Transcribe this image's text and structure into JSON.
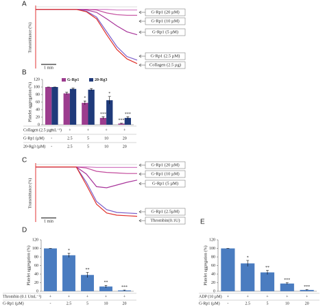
{
  "chart_data": [
    {
      "type": "line",
      "panel": "A",
      "ylabel": "Transmittance (%)",
      "scale_label": "1 min",
      "x": [
        0,
        1,
        2,
        3,
        4,
        5,
        6,
        7,
        8,
        9,
        10
      ],
      "xlim": [
        0,
        10
      ],
      "ylim": [
        0,
        100
      ],
      "series": [
        {
          "name": "G-Rp1 (20 µM)",
          "color": "#d27ac2",
          "values": [
            98,
            98,
            98,
            98,
            98,
            98,
            98,
            98,
            97,
            97,
            97
          ]
        },
        {
          "name": "G-Rp1 (10 µM)",
          "color": "#c24a9c",
          "values": [
            98,
            98,
            98,
            98,
            98,
            98,
            97,
            92,
            89,
            88,
            88
          ]
        },
        {
          "name": "G-Rp1 (5 µM)",
          "color": "#a8349a",
          "values": [
            98,
            98,
            98,
            98,
            98,
            97,
            93,
            82,
            70,
            60,
            55
          ]
        },
        {
          "name": "G-Rp1 (2.5 µM)",
          "color": "#7a5cc8",
          "values": [
            98,
            98,
            98,
            98,
            98,
            95,
            85,
            60,
            35,
            18,
            12
          ]
        },
        {
          "name": "Collagen (2.5 µg)",
          "color": "#e0302a",
          "values": [
            98,
            98,
            98,
            98,
            98,
            94,
            82,
            55,
            30,
            14,
            6
          ]
        }
      ]
    },
    {
      "type": "bar",
      "panel": "B",
      "ylabel": "Platelet aggregation (%)",
      "ylim": [
        0,
        120
      ],
      "yticks": [
        0,
        20,
        40,
        60,
        80,
        100,
        120
      ],
      "series": [
        {
          "name": "G-Rp1",
          "color": "#9c3c8e",
          "values": [
            100,
            83,
            58,
            18,
            3
          ],
          "errors": [
            0,
            3,
            5,
            3,
            1
          ],
          "sig": [
            null,
            null,
            "*",
            "***",
            "***"
          ]
        },
        {
          "name": "20-Rg3",
          "color": "#1f3a7a",
          "values": [
            100,
            95,
            93,
            65,
            18
          ],
          "errors": [
            0,
            2,
            3,
            10,
            3
          ],
          "sig": [
            null,
            null,
            null,
            "*",
            "***"
          ]
        }
      ],
      "table": [
        {
          "label": "Collagen (2.5 µgmL⁻¹)",
          "cells": [
            "+",
            "+",
            "+",
            "+",
            "+"
          ]
        },
        {
          "label": "G-Rp1 (µM)",
          "cells": [
            "-",
            "2.5",
            "5",
            "10",
            "20"
          ]
        },
        {
          "label": "20-Rg3 (µM)",
          "cells": [
            "-",
            "2.5",
            "5",
            "10",
            "20"
          ]
        }
      ]
    },
    {
      "type": "line",
      "panel": "C",
      "ylabel": "Transmittance (%)",
      "scale_label": "1 min",
      "x": [
        0,
        1,
        2,
        3,
        4,
        5,
        6,
        7,
        8,
        9,
        10
      ],
      "xlim": [
        0,
        10
      ],
      "ylim": [
        0,
        100
      ],
      "series": [
        {
          "name": "G-Rp1 (20 µM)",
          "color": "#d27ac2",
          "values": [
            98,
            98,
            98,
            98,
            98,
            98,
            97,
            97,
            97,
            97,
            97
          ]
        },
        {
          "name": "G-Rp1 (10 µM)",
          "color": "#c24a9c",
          "values": [
            98,
            98,
            98,
            98,
            98,
            96,
            90,
            88,
            87,
            86,
            86
          ]
        },
        {
          "name": "G-Rp1 (5 µM)",
          "color": "#a8349a",
          "values": [
            98,
            98,
            98,
            98,
            98,
            85,
            62,
            60,
            65,
            70,
            74
          ]
        },
        {
          "name": "G-Rp1 (2.5µM)",
          "color": "#7a5cc8",
          "values": [
            98,
            98,
            98,
            98,
            98,
            70,
            35,
            20,
            15,
            14,
            13
          ]
        },
        {
          "name": "Thrombin(0.1U)",
          "color": "#e0302a",
          "values": [
            98,
            98,
            98,
            98,
            98,
            65,
            30,
            14,
            10,
            9,
            8
          ]
        }
      ]
    },
    {
      "type": "bar",
      "panel": "D",
      "ylabel": "Platelet aggregation (%)",
      "ylim": [
        0,
        120
      ],
      "yticks": [
        0,
        20,
        40,
        60,
        80,
        100,
        120
      ],
      "series": [
        {
          "color": "#4a7cc0",
          "values": [
            100,
            84,
            38,
            11,
            2
          ],
          "errors": [
            0,
            5,
            6,
            3,
            1
          ],
          "sig": [
            null,
            "*",
            "**",
            "**",
            "***"
          ]
        }
      ],
      "table": [
        {
          "label": "Thrombin (0.1 UmL⁻¹)",
          "cells": [
            "+",
            "+",
            "+",
            "+",
            "+"
          ]
        },
        {
          "label": "G-Rp1 (µM)",
          "cells": [
            "-",
            "2.5",
            "5",
            "10",
            "20"
          ]
        }
      ]
    },
    {
      "type": "bar",
      "panel": "E",
      "ylabel": "Platelet aggregation (%)",
      "ylim": [
        0,
        120
      ],
      "yticks": [
        0,
        20,
        40,
        60,
        80,
        100,
        120
      ],
      "series": [
        {
          "color": "#4a7cc0",
          "values": [
            100,
            65,
            44,
            18,
            3
          ],
          "errors": [
            0,
            7,
            5,
            2,
            1
          ],
          "sig": [
            null,
            "*",
            "**",
            "***",
            "***"
          ]
        }
      ],
      "table": [
        {
          "label": "ADP (10 µM)",
          "cells": [
            "+",
            "+",
            "+",
            "+",
            "+"
          ]
        },
        {
          "label": "G-Rp1 (µM)",
          "cells": [
            "-",
            "2.5",
            "5",
            "10",
            "20"
          ]
        }
      ]
    }
  ]
}
